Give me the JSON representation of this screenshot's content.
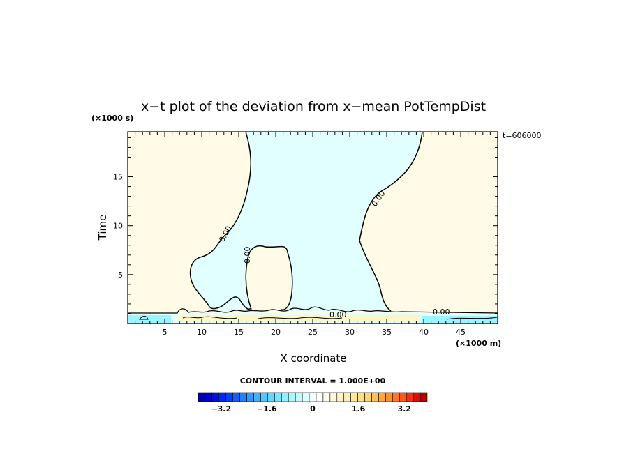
{
  "chart_data": {
    "type": "contour",
    "title": "x−t plot of the deviation from x−mean PotTempDist",
    "xlabel": "X coordinate",
    "ylabel": "Time",
    "x_unit": "(×1000 m)",
    "y_unit": "(×1000 s)",
    "time_stamp": "t=606000",
    "xlim": [
      0,
      50
    ],
    "ylim": [
      0,
      19.6
    ],
    "x_ticks": [
      5,
      10,
      15,
      20,
      25,
      30,
      35,
      40,
      45
    ],
    "y_ticks": [
      5,
      10,
      15
    ],
    "contour_label": "0.00",
    "contour_interval_text": "CONTOUR INTERVAL = 1.000E+00",
    "colorbar": {
      "min": -4,
      "max": 4,
      "tick_labels": [
        "−3.2",
        "−1.6",
        "0",
        "1.6",
        "3.2"
      ],
      "tick_values": [
        -3.2,
        -1.6,
        0,
        1.6,
        3.2
      ],
      "colors": [
        "#0000a8",
        "#0000c8",
        "#0010e0",
        "#0028f0",
        "#0040ff",
        "#1060ff",
        "#2080ff",
        "#3098ff",
        "#40b0ff",
        "#50c8ff",
        "#60d8ff",
        "#78e4ff",
        "#90f0ff",
        "#a8f8ff",
        "#c0fcff",
        "#dcffff",
        "#f0ffff",
        "#ffffff",
        "#fffff0",
        "#fffadc",
        "#fff5c8",
        "#fff0b0",
        "#ffe898",
        "#ffe080",
        "#ffd468",
        "#ffc050",
        "#ffa838",
        "#ff9028",
        "#ff7820",
        "#ff5818",
        "#f03010",
        "#d81008",
        "#b80000"
      ]
    },
    "fill_colors": {
      "positive": "#fffbe6",
      "negative": "#e2ffff",
      "stronger_positive": "#fff6c8",
      "stronger_negative": "#9cf4ff"
    }
  }
}
